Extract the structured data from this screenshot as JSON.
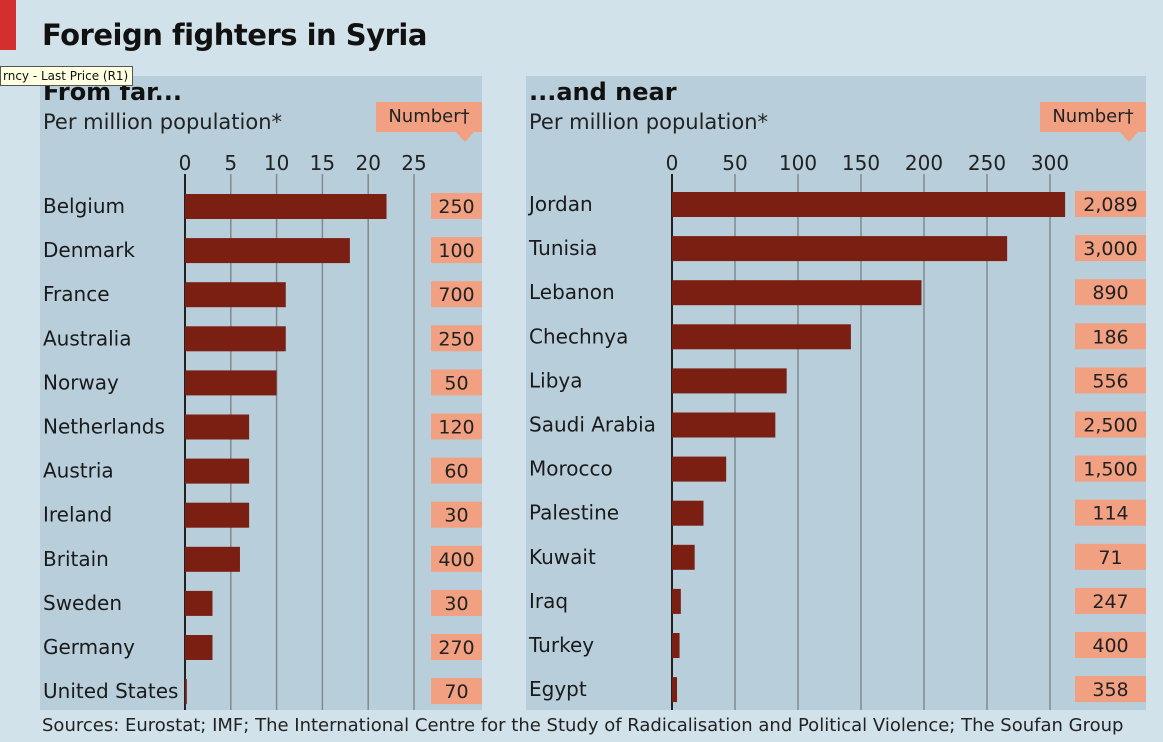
{
  "title": "Foreign fighters in Syria",
  "tooltip": "rncy - Last Price (R1)",
  "sources": "Sources: Eurostat; IMF; The International Centre for the Study of  Radicalisation and Political Violence; The Soufan Group",
  "colors": {
    "bar": "#7a1f12",
    "number_box": "#f1a082",
    "panel": "#b8cfdb",
    "background": "#d2e2ea",
    "grid": "#7f8a90"
  },
  "chart_data": [
    {
      "type": "bar",
      "orientation": "horizontal",
      "title": "From far...",
      "xlabel": "Per million population*",
      "number_header": "Number†",
      "xlim": [
        0,
        25
      ],
      "ticks": [
        0,
        5,
        10,
        15,
        20,
        25
      ],
      "categories": [
        "Belgium",
        "Denmark",
        "France",
        "Australia",
        "Norway",
        "Netherlands",
        "Austria",
        "Ireland",
        "Britain",
        "Sweden",
        "Germany",
        "United States"
      ],
      "values": [
        22,
        18,
        11,
        11,
        10,
        7,
        7,
        7,
        6,
        3,
        3,
        0.2
      ],
      "numbers": [
        "250",
        "100",
        "700",
        "250",
        "50",
        "120",
        "60",
        "30",
        "400",
        "30",
        "270",
        "70"
      ]
    },
    {
      "type": "bar",
      "orientation": "horizontal",
      "title": "...and near",
      "xlabel": "Per million population*",
      "number_header": "Number†",
      "xlim": [
        0,
        300
      ],
      "ticks": [
        0,
        50,
        100,
        150,
        200,
        250,
        300
      ],
      "categories": [
        "Jordan",
        "Tunisia",
        "Lebanon",
        "Chechnya",
        "Libya",
        "Saudi Arabia",
        "Morocco",
        "Palestine",
        "Kuwait",
        "Iraq",
        "Turkey",
        "Egypt"
      ],
      "values": [
        312,
        266,
        198,
        142,
        91,
        82,
        43,
        25,
        18,
        7,
        6,
        4
      ],
      "numbers": [
        "2,089",
        "3,000",
        "890",
        "186",
        "556",
        "2,500",
        "1,500",
        "114",
        "71",
        "247",
        "400",
        "358"
      ]
    }
  ]
}
